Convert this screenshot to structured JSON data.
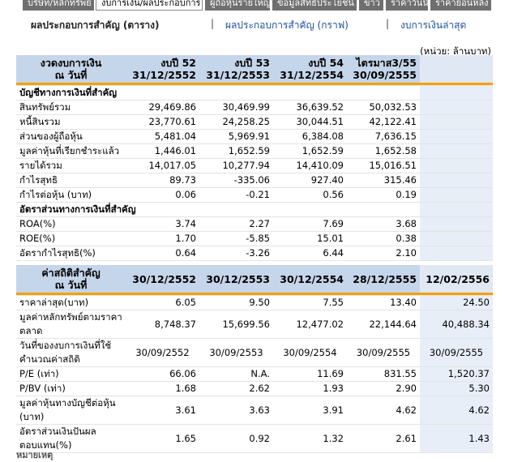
{
  "tabs": [
    "บริษัท/หลักทรัพย์",
    "งบการเงิน/ผลประกอบการ",
    "ผู้ถือหุ้นรายใหญ่",
    "ข้อมูลสิทธิประโยชน์",
    "ข่าว",
    "ราคาวันนี้",
    "ราคาย้อนหลัง"
  ],
  "subnav": {
    "current": "ผลประกอบการสำคัญ (ตาราง)",
    "link_graph": "ผลประกอบการสำคัญ (กราฟ)",
    "link_latest": "งบการเงินล่าสุด",
    "separator": "|"
  },
  "unit": "(หน่วย: ล้านบาท)",
  "fin_table": {
    "header_label": [
      "งวดงบการเงิน",
      "ณ วันที่"
    ],
    "columns": [
      [
        "งบปี 52",
        "31/12/2552"
      ],
      [
        "งบปี 53",
        "31/12/2553"
      ],
      [
        "งบปี 54",
        "31/12/2554"
      ],
      [
        "ไตรมาส3/55",
        "30/09/2555"
      ]
    ],
    "section1": "บัญชีทางการเงินที่สำคัญ",
    "rows1": [
      {
        "label": "สินทรัพย์รวม",
        "v": [
          "29,469.86",
          "30,469.99",
          "36,639.52",
          "50,032.53"
        ]
      },
      {
        "label": "หนี้สินรวม",
        "v": [
          "23,770.61",
          "24,258.25",
          "30,044.51",
          "42,122.41"
        ]
      },
      {
        "label": "ส่วนของผู้ถือหุ้น",
        "v": [
          "5,481.04",
          "5,969.91",
          "6,384.08",
          "7,636.15"
        ]
      },
      {
        "label": "มูลค่าหุ้นที่เรียกชำระแล้ว",
        "v": [
          "1,446.01",
          "1,652.59",
          "1,652.59",
          "1,652.58"
        ]
      },
      {
        "label": "รายได้รวม",
        "v": [
          "14,017.05",
          "10,277.94",
          "14,410.09",
          "15,016.51"
        ]
      },
      {
        "label": "กำไรสุทธิ",
        "v": [
          "89.73",
          "-335.06",
          "927.40",
          "315.46"
        ]
      },
      {
        "label": "กำไรต่อหุ้น (บาท)",
        "v": [
          "0.06",
          "-0.21",
          "0.56",
          "0.19"
        ]
      }
    ],
    "section2": "อัตราส่วนทางการเงินที่สำคัญ",
    "rows2": [
      {
        "label": "ROA(%)",
        "v": [
          "3.74",
          "2.27",
          "7.69",
          "3.68"
        ]
      },
      {
        "label": "ROE(%)",
        "v": [
          "1.70",
          "-5.85",
          "15.01",
          "0.38"
        ]
      },
      {
        "label": "อัตรากำไรสุทธิ(%)",
        "v": [
          "0.64",
          "-3.26",
          "6.44",
          "2.10"
        ]
      }
    ]
  },
  "stat_table": {
    "header_label": [
      "ค่าสถิติสำคัญ",
      "ณ วันที่"
    ],
    "columns": [
      "30/12/2552",
      "30/12/2553",
      "30/12/2554",
      "28/12/2555",
      "12/02/2556"
    ],
    "rows": [
      {
        "label": "ราคาล่าสุด(บาท)",
        "v": [
          "6.05",
          "9.50",
          "7.55",
          "13.40",
          "24.50"
        ]
      },
      {
        "label": "มูลค่าหลักทรัพย์ตามราคาตลาด",
        "v": [
          "8,748.37",
          "15,699.56",
          "12,477.02",
          "22,144.64",
          "40,488.34"
        ]
      },
      {
        "label": "วันที่ของงบการเงินที่ใช้คำนวณค่าสถิติ",
        "v": [
          "30/09/2552",
          "30/09/2553",
          "30/09/2554",
          "30/09/2555",
          "30/09/2555"
        ]
      },
      {
        "label": "P/E (เท่า)",
        "v": [
          "66.06",
          "N.A.",
          "11.69",
          "831.55",
          "1,520.37"
        ]
      },
      {
        "label": "P/BV (เท่า)",
        "v": [
          "1.68",
          "2.62",
          "1.93",
          "2.90",
          "5.30"
        ]
      },
      {
        "label": "มูลค่าหุ้นทางบัญชีต่อหุ้น (บาท)",
        "v": [
          "3.61",
          "3.63",
          "3.91",
          "4.62",
          "4.62"
        ]
      },
      {
        "label": "อัตราส่วนเงินปันผลตอบแทน(%)",
        "v": [
          "1.65",
          "0.92",
          "1.32",
          "2.61",
          "1.43"
        ]
      }
    ]
  },
  "footer": "หมายเหตุ"
}
